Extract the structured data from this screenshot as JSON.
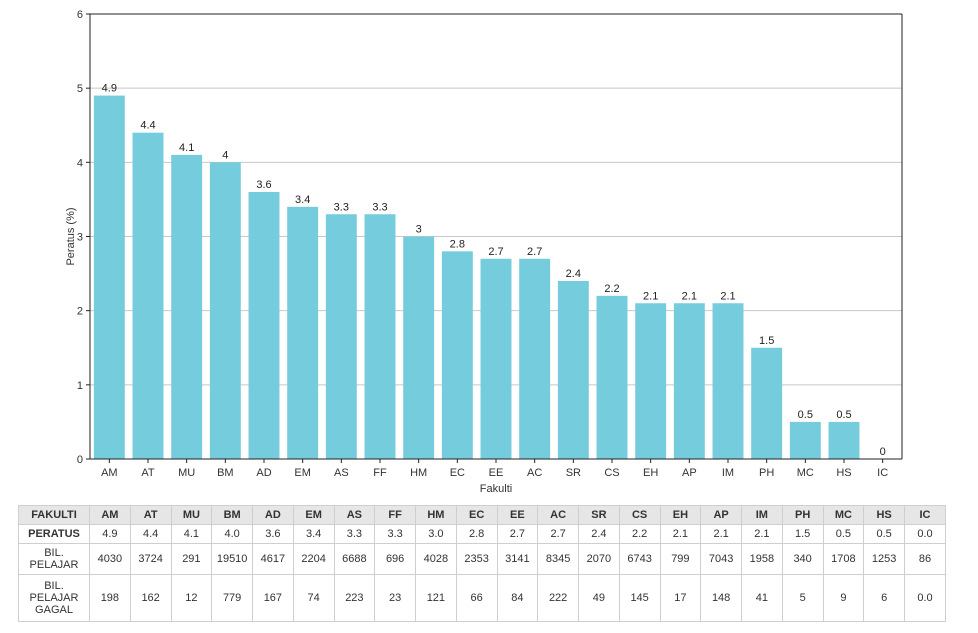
{
  "chart_data": {
    "type": "bar",
    "categories": [
      "AM",
      "AT",
      "MU",
      "BM",
      "AD",
      "EM",
      "AS",
      "FF",
      "HM",
      "EC",
      "EE",
      "AC",
      "SR",
      "CS",
      "EH",
      "AP",
      "IM",
      "PH",
      "MC",
      "HS",
      "IC"
    ],
    "values": [
      4.9,
      4.4,
      4.1,
      4.0,
      3.6,
      3.4,
      3.3,
      3.3,
      3.0,
      2.8,
      2.7,
      2.7,
      2.4,
      2.2,
      2.1,
      2.1,
      2.1,
      1.5,
      0.5,
      0.5,
      0
    ],
    "data_labels": [
      "4.9",
      "4.4",
      "4.1",
      "4",
      "3.6",
      "3.4",
      "3.3",
      "3.3",
      "3",
      "2.8",
      "2.7",
      "2.7",
      "2.4",
      "2.2",
      "2.1",
      "2.1",
      "2.1",
      "1.5",
      "0.5",
      "0.5",
      "0"
    ],
    "xlabel": "Fakulti",
    "ylabel": "Peratus (%)",
    "ylim": [
      0,
      6
    ],
    "yticks": [
      "0",
      "1",
      "2",
      "3",
      "4",
      "5",
      "6"
    ],
    "grid": true,
    "bar_color": "#74ccdc",
    "grid_color": "#c8c8c8",
    "axis_color": "#222222"
  },
  "table": {
    "header_label": "FAKULTI",
    "columns": [
      "AM",
      "AT",
      "MU",
      "BM",
      "AD",
      "EM",
      "AS",
      "FF",
      "HM",
      "EC",
      "EE",
      "AC",
      "SR",
      "CS",
      "EH",
      "AP",
      "IM",
      "PH",
      "MC",
      "HS",
      "IC"
    ],
    "rows": [
      {
        "label": "PERATUS",
        "values": [
          "4.9",
          "4.4",
          "4.1",
          "4.0",
          "3.6",
          "3.4",
          "3.3",
          "3.3",
          "3.0",
          "2.8",
          "2.7",
          "2.7",
          "2.4",
          "2.2",
          "2.1",
          "2.1",
          "2.1",
          "1.5",
          "0.5",
          "0.5",
          "0.0"
        ]
      },
      {
        "label": "BIL. PELAJAR",
        "values": [
          "4030",
          "3724",
          "291",
          "19510",
          "4617",
          "2204",
          "6688",
          "696",
          "4028",
          "2353",
          "3141",
          "8345",
          "2070",
          "6743",
          "799",
          "7043",
          "1958",
          "340",
          "1708",
          "1253",
          "86"
        ]
      },
      {
        "label": "BIL. PELAJAR GAGAL",
        "values": [
          "198",
          "162",
          "12",
          "779",
          "167",
          "74",
          "223",
          "23",
          "121",
          "66",
          "84",
          "222",
          "49",
          "145",
          "17",
          "148",
          "41",
          "5",
          "9",
          "6",
          "0.0"
        ]
      }
    ]
  }
}
